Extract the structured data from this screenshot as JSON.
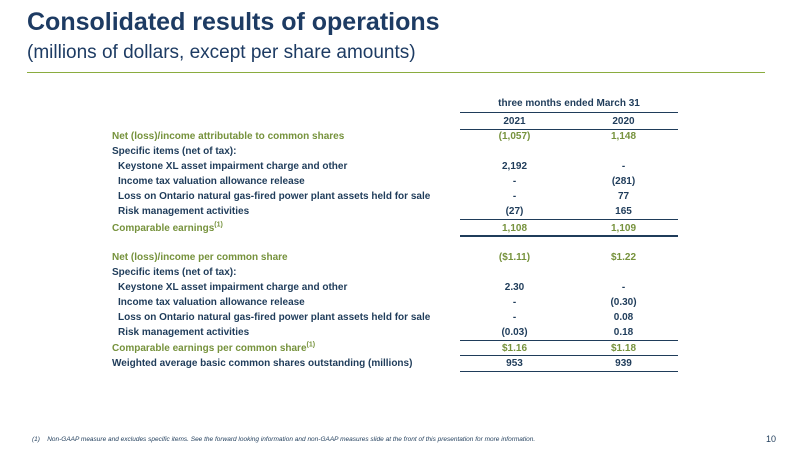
{
  "slide": {
    "title": "Consolidated results of operations",
    "subtitle": "(millions of dollars, except per share amounts)",
    "page_number": "10"
  },
  "table": {
    "period_header": "three months ended March 31",
    "columns": [
      "2021",
      "2020"
    ],
    "earnings_rows": [
      {
        "label": "Net (loss)/income attributable to common shares",
        "v2021": "(1,057)",
        "v2020": "1,148"
      },
      {
        "label": "Specific items (net of tax):",
        "v2021": "",
        "v2020": ""
      },
      {
        "label": "Keystone XL asset impairment charge and other",
        "v2021": "2,192",
        "v2020": "-"
      },
      {
        "label": "Income tax valuation allowance release",
        "v2021": "-",
        "v2020": "(281)"
      },
      {
        "label": "Loss on Ontario natural gas-fired power plant assets held for sale",
        "v2021": "-",
        "v2020": "77"
      },
      {
        "label": "Risk management activities",
        "v2021": "(27)",
        "v2020": "165"
      }
    ],
    "comparable_earnings": {
      "label": "Comparable earnings",
      "sup": "(1)",
      "v2021": "1,108",
      "v2020": "1,109"
    },
    "per_share_rows": [
      {
        "label": "Net (loss)/income per common share",
        "v2021": "($1.11)",
        "v2020": "$1.22"
      },
      {
        "label": "Specific items (net of tax):",
        "v2021": "",
        "v2020": ""
      },
      {
        "label": "Keystone XL asset impairment charge and other",
        "v2021": "2.30",
        "v2020": "-"
      },
      {
        "label": "Income tax valuation allowance release",
        "v2021": "-",
        "v2020": "(0.30)"
      },
      {
        "label": "Loss on Ontario natural gas-fired power plant assets held for sale",
        "v2021": "-",
        "v2020": "0.08"
      },
      {
        "label": "Risk management activities",
        "v2021": "(0.03)",
        "v2020": "0.18"
      }
    ],
    "comparable_eps": {
      "label": "Comparable earnings per common share",
      "sup": "(1)",
      "v2021": "$1.16",
      "v2020": "$1.18"
    },
    "weighted_shares": {
      "label": "Weighted average basic common shares outstanding (millions)",
      "v2021": "953",
      "v2020": "939"
    }
  },
  "footnote": {
    "marker": "(1)",
    "text": "Non-GAAP measure and excludes specific items. See the forward looking information and non-GAAP measures slide at the front of this presentation for more information."
  },
  "colors": {
    "navy": "#1d3b63",
    "green": "#76923c",
    "rule": "#8aac3f"
  }
}
